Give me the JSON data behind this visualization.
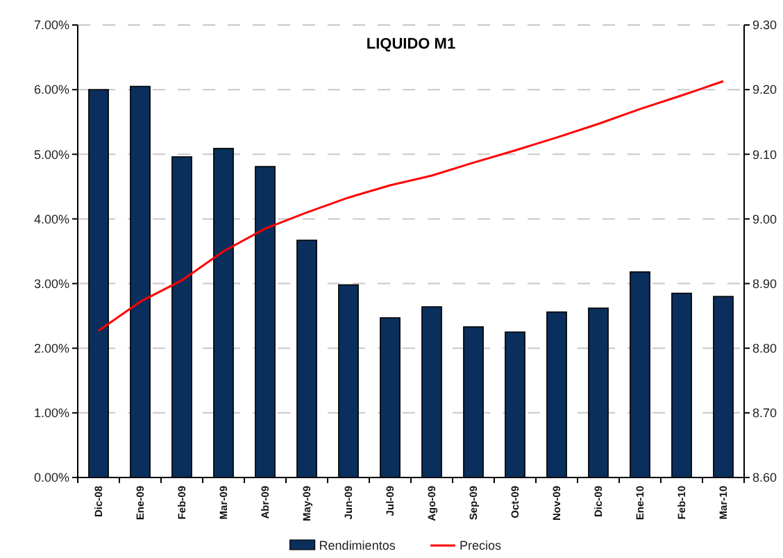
{
  "chart_data": {
    "type": "bar",
    "title": "LIQUIDO M1",
    "categories": [
      "Dic-08",
      "Ene-09",
      "Feb-09",
      "Mar-09",
      "Abr-09",
      "May-09",
      "Jun-09",
      "Jul-09",
      "Ago-09",
      "Sep-09",
      "Oct-09",
      "Nov-09",
      "Dic-09",
      "Ene-10",
      "Feb-10",
      "Mar-10"
    ],
    "series": [
      {
        "name": "Rendimientos",
        "color": "#0b2f5c",
        "values": [
          6.0,
          6.05,
          4.96,
          5.09,
          4.81,
          3.67,
          2.98,
          2.47,
          2.64,
          2.33,
          2.25,
          2.56,
          2.62,
          3.18,
          2.85,
          2.8
        ]
      },
      {
        "name": "Precios",
        "type": "line",
        "axis": "y2",
        "color": "#ff0000",
        "values": [
          8.827,
          8.872,
          8.905,
          8.95,
          8.985,
          9.01,
          9.033,
          9.052,
          9.067,
          9.087,
          9.106,
          9.126,
          9.147,
          9.17,
          9.191,
          9.213
        ]
      }
    ],
    "ylim": [
      0,
      7
    ],
    "yticks": [
      {
        "value": 0,
        "label": "0.00%"
      },
      {
        "value": 1,
        "label": "1.00%"
      },
      {
        "value": 2,
        "label": "2.00%"
      },
      {
        "value": 3,
        "label": "3.00%"
      },
      {
        "value": 4,
        "label": "4.00%"
      },
      {
        "value": 5,
        "label": "5.00%"
      },
      {
        "value": 6,
        "label": "6.00%"
      },
      {
        "value": 7,
        "label": "7.00%"
      }
    ],
    "y2lim": [
      8.6,
      9.3
    ],
    "y2ticks": [
      {
        "value": 8.6,
        "label": "8.60"
      },
      {
        "value": 8.7,
        "label": "8.70"
      },
      {
        "value": 8.8,
        "label": "8.80"
      },
      {
        "value": 8.9,
        "label": "8.90"
      },
      {
        "value": 9.0,
        "label": "9.00"
      },
      {
        "value": 9.1,
        "label": "9.10"
      },
      {
        "value": 9.2,
        "label": "9.20"
      },
      {
        "value": 9.3,
        "label": "9.30"
      }
    ],
    "grid": "y",
    "legend": "bottom"
  }
}
